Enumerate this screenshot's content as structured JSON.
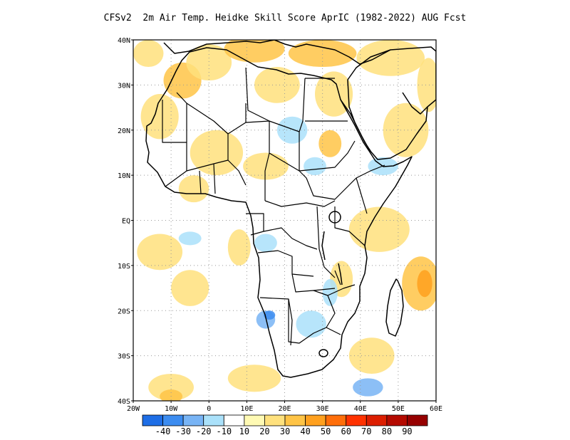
{
  "title": "CFSv2  2m Air Temp. Heidke Skill Score AprIC (1982-2022) AUG Fcst",
  "map": {
    "lon_range": [
      -20,
      60
    ],
    "lat_range": [
      -40,
      40
    ],
    "lat_ticks": [
      {
        "value": 40,
        "label": "40N"
      },
      {
        "value": 30,
        "label": "30N"
      },
      {
        "value": 20,
        "label": "20N"
      },
      {
        "value": 10,
        "label": "10N"
      },
      {
        "value": 0,
        "label": "EQ"
      },
      {
        "value": -10,
        "label": "10S"
      },
      {
        "value": -20,
        "label": "20S"
      },
      {
        "value": -30,
        "label": "30S"
      },
      {
        "value": -40,
        "label": "40S"
      }
    ],
    "lon_ticks": [
      {
        "value": -20,
        "label": "20W"
      },
      {
        "value": -10,
        "label": "10W"
      },
      {
        "value": 0,
        "label": "0"
      },
      {
        "value": 10,
        "label": "10E"
      },
      {
        "value": 20,
        "label": "20E"
      },
      {
        "value": 30,
        "label": "30E"
      },
      {
        "value": 40,
        "label": "40E"
      },
      {
        "value": 50,
        "label": "50E"
      },
      {
        "value": 60,
        "label": "60E"
      }
    ],
    "grid": true,
    "skill_patches": [
      {
        "lon": -16,
        "lat": 37,
        "rx": 4,
        "ry": 3,
        "level": 2
      },
      {
        "lon": -7,
        "lat": 31,
        "rx": 5,
        "ry": 4,
        "level": 3
      },
      {
        "lon": 0,
        "lat": 35,
        "rx": 6,
        "ry": 4,
        "level": 2
      },
      {
        "lon": 12,
        "lat": 38,
        "rx": 8,
        "ry": 3,
        "level": 3
      },
      {
        "lon": 30,
        "lat": 37,
        "rx": 9,
        "ry": 3,
        "level": 3
      },
      {
        "lon": 48,
        "lat": 36,
        "rx": 9,
        "ry": 4,
        "level": 2
      },
      {
        "lon": 18,
        "lat": 30,
        "rx": 6,
        "ry": 4,
        "level": 2
      },
      {
        "lon": 33,
        "lat": 28,
        "rx": 5,
        "ry": 5,
        "level": 2
      },
      {
        "lon": -13,
        "lat": 23,
        "rx": 5,
        "ry": 5,
        "level": 2
      },
      {
        "lon": 2,
        "lat": 15,
        "rx": 7,
        "ry": 5,
        "level": 2
      },
      {
        "lon": 15,
        "lat": 12,
        "rx": 6,
        "ry": 3,
        "level": 2
      },
      {
        "lon": 32,
        "lat": 17,
        "rx": 3,
        "ry": 3,
        "level": 3
      },
      {
        "lon": 52,
        "lat": 20,
        "rx": 6,
        "ry": 6,
        "level": 2
      },
      {
        "lon": 58,
        "lat": 30,
        "rx": 3,
        "ry": 6,
        "level": 2
      },
      {
        "lon": -13,
        "lat": -7,
        "rx": 6,
        "ry": 4,
        "level": 2
      },
      {
        "lon": -5,
        "lat": -15,
        "rx": 5,
        "ry": 4,
        "level": 2
      },
      {
        "lon": 45,
        "lat": -2,
        "rx": 8,
        "ry": 5,
        "level": 2
      },
      {
        "lon": 56,
        "lat": -14,
        "rx": 5,
        "ry": 6,
        "level": 3
      },
      {
        "lon": 57,
        "lat": -14,
        "rx": 2,
        "ry": 3,
        "level": 4
      },
      {
        "lon": 12,
        "lat": -35,
        "rx": 7,
        "ry": 3,
        "level": 2
      },
      {
        "lon": -10,
        "lat": -37,
        "rx": 6,
        "ry": 3,
        "level": 2
      },
      {
        "lon": -10,
        "lat": -39,
        "rx": 3,
        "ry": 1.5,
        "level": 3
      },
      {
        "lon": 43,
        "lat": -30,
        "rx": 6,
        "ry": 4,
        "level": 2
      },
      {
        "lon": 35,
        "lat": -13,
        "rx": 3,
        "ry": 4,
        "level": 2
      },
      {
        "lon": 8,
        "lat": -6,
        "rx": 3,
        "ry": 4,
        "level": 2
      },
      {
        "lon": -4,
        "lat": 7,
        "rx": 4,
        "ry": 3,
        "level": 2
      },
      {
        "lon": 15,
        "lat": -22,
        "rx": 2.5,
        "ry": 2,
        "level": -2
      },
      {
        "lon": 16,
        "lat": -21,
        "rx": 1.5,
        "ry": 1,
        "level": -3
      },
      {
        "lon": 27,
        "lat": -23,
        "rx": 4,
        "ry": 3,
        "level": -1
      },
      {
        "lon": 32,
        "lat": -16,
        "rx": 2,
        "ry": 3,
        "level": -1
      },
      {
        "lon": -5,
        "lat": -4,
        "rx": 3,
        "ry": 1.5,
        "level": -1
      },
      {
        "lon": 42,
        "lat": -37,
        "rx": 4,
        "ry": 2,
        "level": -2
      },
      {
        "lon": 22,
        "lat": 20,
        "rx": 4,
        "ry": 3,
        "level": -1
      },
      {
        "lon": 28,
        "lat": 12,
        "rx": 3,
        "ry": 2,
        "level": -1
      },
      {
        "lon": 46,
        "lat": 12,
        "rx": 4,
        "ry": 2,
        "level": -1
      },
      {
        "lon": 15,
        "lat": -5,
        "rx": 3,
        "ry": 2,
        "level": -1
      }
    ]
  },
  "colorbar": {
    "labels": [
      "-40",
      "-30",
      "-20",
      "-10",
      "10",
      "20",
      "30",
      "40",
      "50",
      "60",
      "70",
      "80",
      "90"
    ],
    "colors": [
      "#1e6ee6",
      "#3c8cf0",
      "#78b4f5",
      "#aae1fa",
      "#ffffff",
      "#fffab4",
      "#ffe17d",
      "#ffc446",
      "#ffa01e",
      "#ff6e0a",
      "#ff3200",
      "#dc1e00",
      "#b40a00",
      "#960000"
    ]
  },
  "colors": {
    "ocean": "#ffffff",
    "border": "#000000",
    "grid": "#999999"
  }
}
